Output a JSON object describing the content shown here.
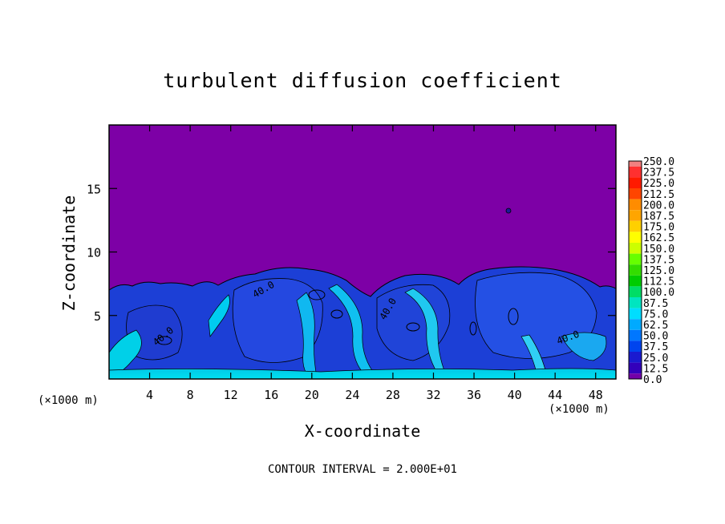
{
  "chart_data": {
    "type": "heatmap",
    "title": "turbulent diffusion coefficient",
    "xlabel": "X-coordinate",
    "ylabel": "Z-coordinate",
    "x_unit": "(×1000 m)",
    "x_ticks": [
      4,
      8,
      12,
      16,
      20,
      24,
      28,
      32,
      36,
      40,
      44,
      48
    ],
    "y_ticks": [
      5,
      10,
      15
    ],
    "xlim": [
      0,
      50
    ],
    "ylim": [
      0,
      20
    ],
    "colorbar": {
      "labels": [
        "250.0",
        "237.5",
        "225.0",
        "212.5",
        "200.0",
        "187.5",
        "175.0",
        "162.5",
        "150.0",
        "137.5",
        "125.0",
        "112.5",
        "100.0",
        "87.5",
        "75.0",
        "62.5",
        "50.0",
        "37.5",
        "25.0",
        "12.5",
        "0.0"
      ],
      "colors": [
        "#f08080",
        "#ff3030",
        "#ff1a00",
        "#ff4500",
        "#ff8c00",
        "#ffa500",
        "#ffd000",
        "#ffff00",
        "#ccff00",
        "#66ff00",
        "#33dd00",
        "#00cc00",
        "#00dd66",
        "#00e5c0",
        "#00ddff",
        "#00aaff",
        "#0077ff",
        "#0044ee",
        "#1a1ad0",
        "#3300bb",
        "#7300a8"
      ]
    },
    "background_color": "#7d00a6",
    "contour_interval": "CONTOUR INTERVAL =  2.000E+01",
    "contour_labels": [
      "40.0",
      "40.0",
      "40.0",
      "40.0"
    ]
  }
}
